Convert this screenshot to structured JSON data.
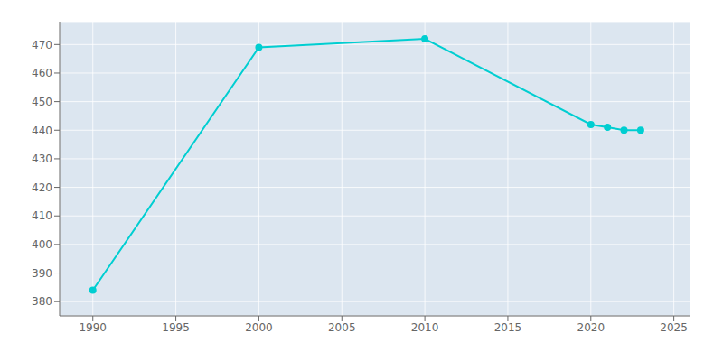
{
  "chart_data": {
    "type": "line",
    "x": [
      1990,
      2000,
      2010,
      2020,
      2021,
      2022,
      2023
    ],
    "values": [
      384,
      469,
      472,
      442,
      441,
      440,
      440
    ],
    "color": "#00CED1",
    "marker": "circle",
    "xlim": [
      1988,
      2026
    ],
    "ylim": [
      375,
      478
    ],
    "xticks": [
      1990,
      1995,
      2000,
      2005,
      2010,
      2015,
      2020,
      2025
    ],
    "yticks": [
      380,
      390,
      400,
      410,
      420,
      430,
      440,
      450,
      460,
      470
    ],
    "grid": true
  }
}
